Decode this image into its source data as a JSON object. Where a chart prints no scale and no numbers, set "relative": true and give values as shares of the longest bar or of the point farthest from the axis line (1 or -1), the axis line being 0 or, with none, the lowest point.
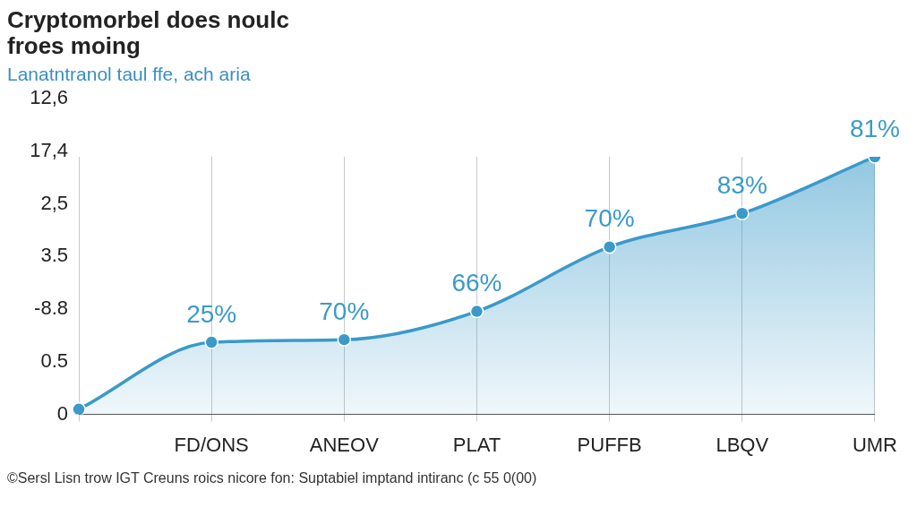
{
  "chart_data": {
    "type": "area",
    "title": "Cryptomorbel does noulc froes moing",
    "subtitle": "Lanatntranol taul ffe, ach aria",
    "categories": [
      null,
      "FD/ONS",
      "ANEOV",
      "PLAT",
      "PUFFB",
      "LBQV",
      "UMR"
    ],
    "relative": true,
    "series": [
      {
        "color": "#3a9ac9",
        "values": [
          0.02,
          0.28,
          0.29,
          0.4,
          0.65,
          0.78,
          1
        ]
      }
    ],
    "grid": "x",
    "marker": "circle",
    "line_style": "solid",
    "annotations": [
      "25%",
      "70%",
      "66%",
      "70%",
      "83%",
      "81%",
      "12,6",
      "17,4",
      "2,5",
      "3.5",
      "-8.8",
      "0.5",
      "0",
      "©Sersl Lisn trow IGT Creuns roics nicore fon: Suptabiel imptand intiranc (c 55 0(00)"
    ]
  }
}
